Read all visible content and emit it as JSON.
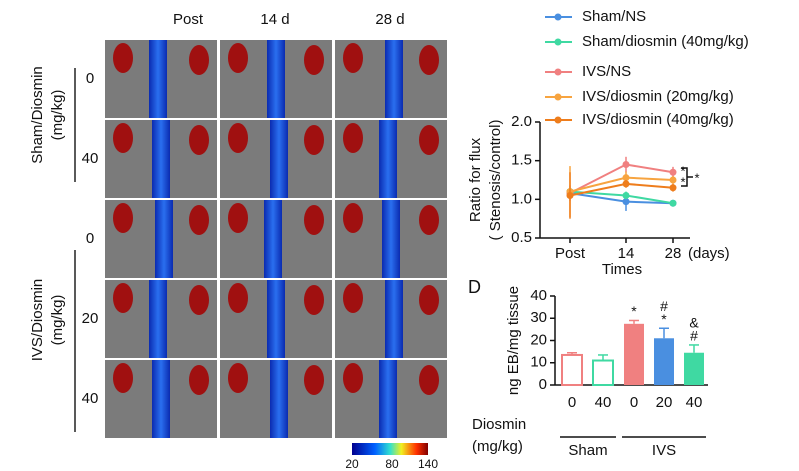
{
  "chart_data": [
    {
      "type": "line",
      "y_label": [
        "Ratio for flux",
        "( Stenosis/control)"
      ],
      "x_label": "Times",
      "x_unit": "(days)",
      "categories": [
        "Post",
        "14",
        "28"
      ],
      "ylim": [
        0.5,
        2.0
      ],
      "yticks": [
        0.5,
        {
          "value": 1,
          "label": "1.0"
        },
        1.5,
        {
          "value": 2,
          "label": "2.0"
        }
      ],
      "series": [
        {
          "name": "Sham/NS",
          "color": "#4a8fe0",
          "values": [
            1.08,
            0.97,
            0.95
          ],
          "errors": [
            0.05,
            0.12,
            0.03
          ]
        },
        {
          "name": "Sham/diosmin (40mg/kg)",
          "color": "#3fd9a2",
          "values": [
            1.1,
            1.05,
            0.95
          ],
          "errors": [
            0.05,
            0.05,
            0.03
          ]
        },
        {
          "name": "IVS/NS",
          "color": "#f08080",
          "values": [
            1.08,
            1.45,
            1.35
          ],
          "errors": [
            0.1,
            0.1,
            0.07
          ]
        },
        {
          "name": "IVS/diosmin (20mg/kg)",
          "color": "#f7a440",
          "values": [
            1.1,
            1.28,
            1.25
          ],
          "errors": [
            0.33,
            0.08,
            0.05
          ]
        },
        {
          "name": "IVS/diosmin (40mg/kg)",
          "color": "#ee7d1c",
          "values": [
            1.05,
            1.2,
            1.15
          ],
          "errors": [
            0.3,
            0.05,
            0.05
          ]
        }
      ],
      "significance_marks": [
        "*",
        "*",
        "*"
      ]
    },
    {
      "type": "bar",
      "panel_label": "D",
      "y_label": "ng EB/mg tissue",
      "row_label": [
        "Diosmin",
        "(mg/kg)"
      ],
      "categories": [
        "0",
        "40",
        "0",
        "20",
        "40"
      ],
      "group_labels": [
        "Sham",
        "IVS"
      ],
      "values": [
        13.5,
        11,
        27.5,
        21,
        14.5
      ],
      "errors": [
        1,
        2.5,
        1.5,
        4.5,
        3.5
      ],
      "colors": [
        "#f08080",
        "#3fd9a2",
        "#f08080",
        "#4a8fe0",
        "#3fd9a2"
      ],
      "hollow": [
        true,
        true,
        false,
        false,
        false
      ],
      "significance": [
        null,
        null,
        [
          "*"
        ],
        [
          "#",
          "*"
        ],
        [
          "&",
          "#"
        ]
      ],
      "ylim": [
        0,
        40
      ],
      "yticks": [
        0,
        10,
        20,
        30,
        40
      ]
    }
  ],
  "image_panel": {
    "column_headers": [
      "Post",
      "14 d",
      "28 d"
    ],
    "group_labels": [
      [
        "Sham/Diosmin",
        "(mg/kg)"
      ],
      [
        "IVS/Diosmin",
        "(mg/kg)"
      ]
    ],
    "row_labels": [
      "0",
      "40",
      "0",
      "20",
      "40"
    ],
    "colorbar_ticks": [
      "20",
      "80",
      "140"
    ]
  }
}
